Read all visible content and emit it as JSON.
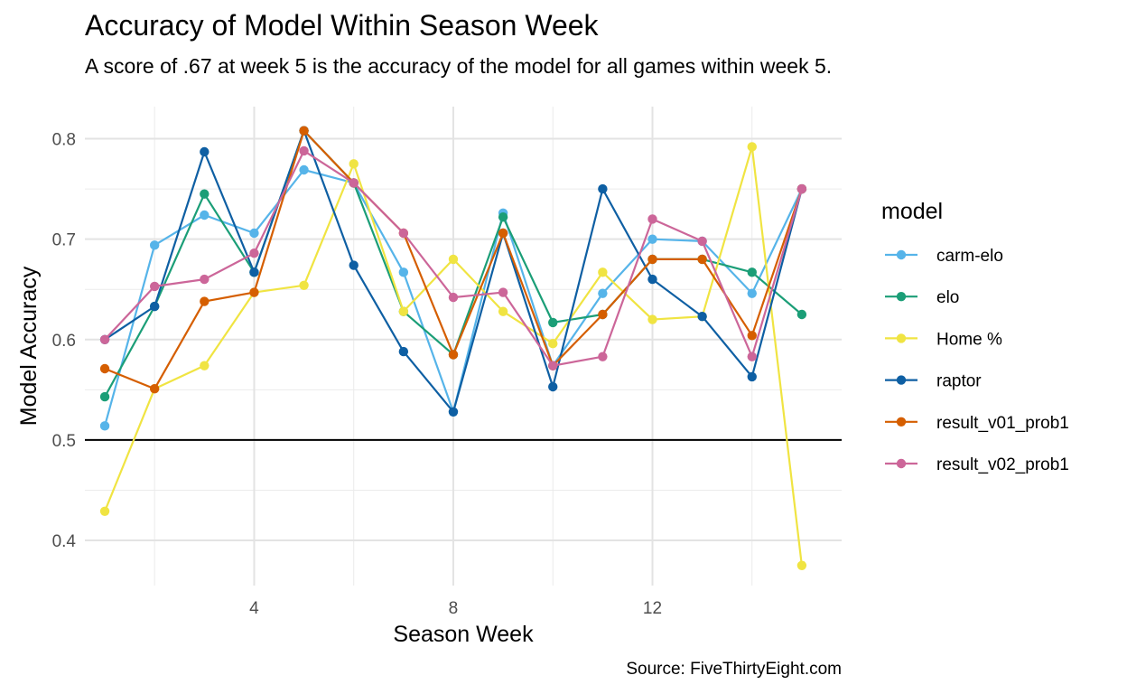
{
  "chart_data": {
    "type": "line",
    "title": "Accuracy of Model Within Season Week",
    "subtitle": "A score of .67 at week 5 is the accuracy of the model for all games within week 5.",
    "caption": "Source: FiveThirtyEight.com",
    "xlabel": "Season Week",
    "ylabel": "Model Accuracy",
    "xlim": [
      0.6,
      15.8
    ],
    "ylim": [
      0.355,
      0.832
    ],
    "x_ticks": [
      4,
      8,
      12
    ],
    "x_tick_labels": [
      "4",
      "8",
      "12"
    ],
    "y_ticks": [
      0.4,
      0.5,
      0.6,
      0.7,
      0.8
    ],
    "y_tick_labels": [
      "0.4",
      "0.5",
      "0.6",
      "0.7",
      "0.8"
    ],
    "reference_line": 0.5,
    "grid": true,
    "legend": {
      "title": "model",
      "position": "right"
    },
    "x": [
      1,
      2,
      3,
      4,
      5,
      6,
      7,
      8,
      9,
      10,
      11,
      12,
      13,
      14,
      15
    ],
    "series": [
      {
        "name": "carm-elo",
        "color": "#56b4e9",
        "values": [
          0.514,
          0.694,
          0.724,
          0.706,
          0.769,
          0.756,
          0.667,
          0.528,
          0.726,
          0.574,
          0.646,
          0.7,
          0.698,
          0.646,
          0.75
        ]
      },
      {
        "name": "elo",
        "color": "#1b9e77",
        "values": [
          0.543,
          0.633,
          0.745,
          0.667,
          0.808,
          0.756,
          0.628,
          0.585,
          0.722,
          0.617,
          0.625,
          0.68,
          0.68,
          0.667,
          0.625
        ]
      },
      {
        "name": "Home %",
        "color": "#f0e442",
        "values": [
          0.429,
          0.551,
          0.574,
          0.647,
          0.654,
          0.775,
          0.628,
          0.68,
          0.628,
          0.596,
          0.667,
          0.62,
          0.623,
          0.792,
          0.375
        ]
      },
      {
        "name": "raptor",
        "color": "#0e5fa3",
        "values": [
          0.6,
          0.633,
          0.787,
          0.667,
          0.808,
          0.674,
          0.588,
          0.528,
          0.706,
          0.553,
          0.75,
          0.66,
          0.623,
          0.563,
          0.75
        ]
      },
      {
        "name": "result_v01_prob1",
        "color": "#d55e00",
        "values": [
          0.571,
          0.551,
          0.638,
          0.647,
          0.808,
          0.756,
          0.706,
          0.585,
          0.706,
          0.574,
          0.625,
          0.68,
          0.68,
          0.604,
          0.75
        ]
      },
      {
        "name": "result_v02_prob1",
        "color": "#cc6699",
        "values": [
          0.6,
          0.653,
          0.66,
          0.686,
          0.788,
          0.756,
          0.706,
          0.642,
          0.647,
          0.574,
          0.583,
          0.72,
          0.698,
          0.583,
          0.75
        ]
      }
    ]
  }
}
